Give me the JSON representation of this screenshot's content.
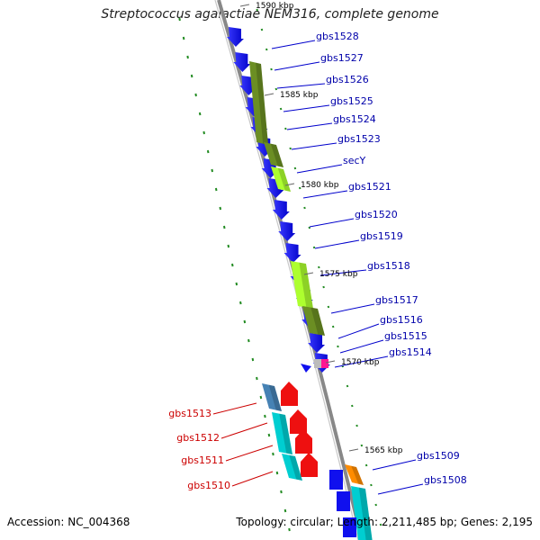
{
  "title": "Streptococcus agalactiae NEM316, complete genome",
  "accession": "Accession: NC_004368",
  "stats": "Topology: circular; Length: 2,211,485 bp; Genes: 2,195",
  "colors": {
    "backbone": "#888888",
    "forward_gene": "#1010ee",
    "reverse_gene": "#ee1010",
    "forward_label": "#0000aa",
    "reverse_label": "#cc0000",
    "olive": "#6b8e23",
    "lime": "#adff2f",
    "steelblue": "#4682b4",
    "cyan": "#00ced1",
    "orange": "#ff8c00",
    "magenta": "#ff1493",
    "tick": "#228b22"
  },
  "ticks": [
    {
      "label": "1590 kbp"
    },
    {
      "label": "1585 kbp"
    },
    {
      "label": "1580 kbp"
    },
    {
      "label": "1575 kbp"
    },
    {
      "label": "1570 kbp"
    },
    {
      "label": "1565 kbp"
    }
  ],
  "forward_genes": [
    {
      "label": "gbs1528"
    },
    {
      "label": "gbs1527"
    },
    {
      "label": "gbs1526"
    },
    {
      "label": "gbs1525"
    },
    {
      "label": "gbs1524"
    },
    {
      "label": "gbs1523"
    },
    {
      "label": "secY"
    },
    {
      "label": "gbs1521"
    },
    {
      "label": "gbs1520"
    },
    {
      "label": "gbs1519"
    },
    {
      "label": "gbs1518"
    },
    {
      "label": "gbs1517"
    },
    {
      "label": "gbs1516"
    },
    {
      "label": "gbs1515"
    },
    {
      "label": "gbs1514"
    },
    {
      "label": "gbs1509"
    },
    {
      "label": "gbs1508"
    }
  ],
  "reverse_genes": [
    {
      "label": "gbs1513"
    },
    {
      "label": "gbs1512"
    },
    {
      "label": "gbs1511"
    },
    {
      "label": "gbs1510"
    }
  ]
}
